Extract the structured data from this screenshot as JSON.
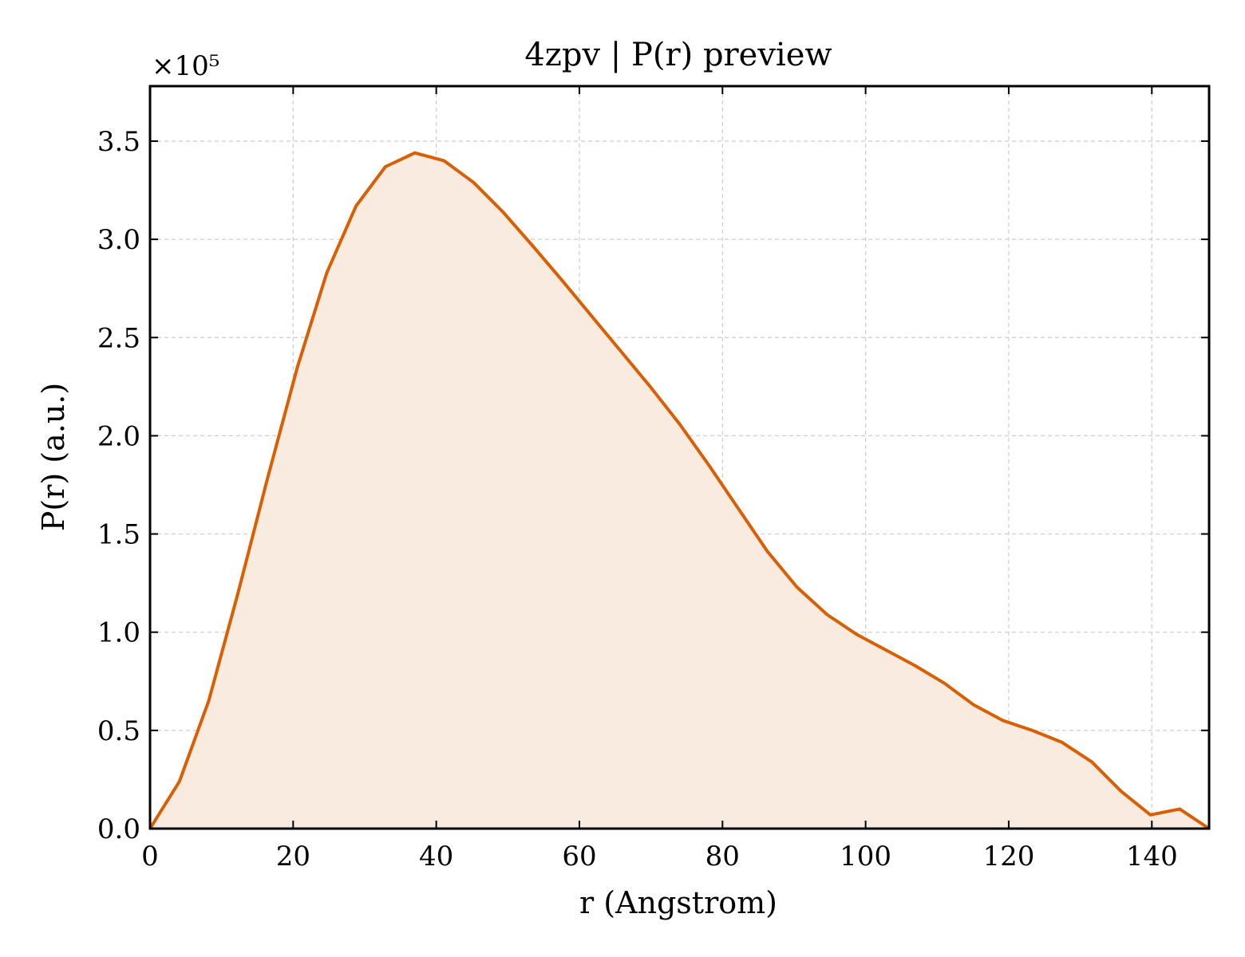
{
  "chart_data": {
    "type": "area",
    "title": "4zpv | P(r) preview",
    "xlabel": "r (Angstrom)",
    "ylabel": "P(r) (a.u.)",
    "y_multiplier_label": "×10⁵",
    "y_scale": 100000,
    "xlim": [
      0,
      148
    ],
    "ylim": [
      0,
      3.78
    ],
    "x_ticks": [
      0,
      20,
      40,
      60,
      80,
      100,
      120,
      140
    ],
    "y_ticks": [
      0.0,
      0.5,
      1.0,
      1.5,
      2.0,
      2.5,
      3.0,
      3.5
    ],
    "x_tick_labels": [
      "0",
      "20",
      "40",
      "60",
      "80",
      "100",
      "120",
      "140"
    ],
    "y_tick_labels": [
      "0.0",
      "0.5",
      "1.0",
      "1.5",
      "2.0",
      "2.5",
      "3.0",
      "3.5"
    ],
    "grid": true,
    "line_color": "#d95f02",
    "fill_color": "#f9ebe0",
    "series": [
      {
        "x": [
          0,
          4.1,
          8.2,
          12.3,
          16.4,
          20.6,
          24.7,
          28.8,
          32.9,
          37.0,
          41.1,
          45.2,
          49.3,
          53.4,
          57.6,
          61.7,
          65.8,
          69.9,
          74.0,
          78.1,
          82.2,
          86.3,
          90.4,
          94.6,
          98.7,
          102.8,
          106.9,
          111.0,
          115.1,
          119.2,
          123.3,
          127.4,
          131.6,
          135.7,
          139.8,
          143.9,
          148.0
        ],
        "values": [
          0.0,
          0.24,
          0.65,
          1.2,
          1.78,
          2.35,
          2.83,
          3.17,
          3.37,
          3.44,
          3.4,
          3.29,
          3.14,
          2.97,
          2.79,
          2.61,
          2.43,
          2.25,
          2.06,
          1.85,
          1.63,
          1.41,
          1.23,
          1.09,
          0.99,
          0.91,
          0.83,
          0.74,
          0.63,
          0.55,
          0.5,
          0.44,
          0.34,
          0.19,
          0.07,
          0.1,
          0.0
        ]
      }
    ]
  }
}
